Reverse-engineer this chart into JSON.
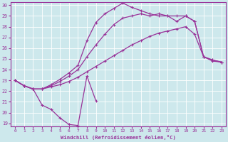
{
  "xlabel": "Windchill (Refroidissement éolien,°C)",
  "bg_color": "#cde8ec",
  "line_color": "#993399",
  "grid_color": "#b0d8dc",
  "xlim": [
    -0.5,
    23.5
  ],
  "ylim": [
    18.7,
    30.3
  ],
  "yticks": [
    19,
    20,
    21,
    22,
    23,
    24,
    25,
    26,
    27,
    28,
    29,
    30
  ],
  "xticks": [
    0,
    1,
    2,
    3,
    4,
    5,
    6,
    7,
    8,
    9,
    10,
    11,
    12,
    13,
    14,
    15,
    16,
    17,
    18,
    19,
    20,
    21,
    22,
    23
  ],
  "line1_x": [
    0,
    1,
    2,
    3,
    4,
    5,
    6,
    7,
    8,
    9
  ],
  "line1_y": [
    23.0,
    22.5,
    22.2,
    20.7,
    20.3,
    19.5,
    18.9,
    18.8,
    23.4,
    21.1
  ],
  "line2_x": [
    0,
    1,
    2,
    3,
    4,
    5,
    6,
    7,
    8,
    9,
    10,
    11,
    12,
    13,
    14,
    15,
    16,
    17,
    18,
    19,
    20,
    21,
    22,
    23
  ],
  "line2_y": [
    23.0,
    22.5,
    22.2,
    22.2,
    22.4,
    22.6,
    22.9,
    23.3,
    23.8,
    24.3,
    24.8,
    25.3,
    25.8,
    26.3,
    26.7,
    27.1,
    27.4,
    27.6,
    27.8,
    28.0,
    27.3,
    25.2,
    24.8,
    24.7
  ],
  "line3_x": [
    0,
    1,
    2,
    3,
    4,
    5,
    6,
    7,
    8,
    9,
    10,
    11,
    12,
    13,
    14,
    15,
    16,
    17,
    18,
    19,
    20,
    21,
    22,
    23
  ],
  "line3_y": [
    23.0,
    22.5,
    22.2,
    22.2,
    22.5,
    22.9,
    23.4,
    24.0,
    25.2,
    26.3,
    27.3,
    28.2,
    28.8,
    29.0,
    29.2,
    29.0,
    29.2,
    29.0,
    29.0,
    29.0,
    28.5,
    25.2,
    24.9,
    24.7
  ],
  "line4_x": [
    0,
    1,
    2,
    3,
    4,
    5,
    6,
    7,
    8,
    9,
    10,
    11,
    12,
    13,
    14,
    15,
    16,
    17,
    18,
    19,
    20,
    21,
    22,
    23
  ],
  "line4_y": [
    23.0,
    22.5,
    22.2,
    22.2,
    22.6,
    23.1,
    23.7,
    24.4,
    26.7,
    28.4,
    29.2,
    29.7,
    30.2,
    29.8,
    29.5,
    29.2,
    29.0,
    29.0,
    28.5,
    29.0,
    28.5,
    25.2,
    24.9,
    24.7
  ]
}
